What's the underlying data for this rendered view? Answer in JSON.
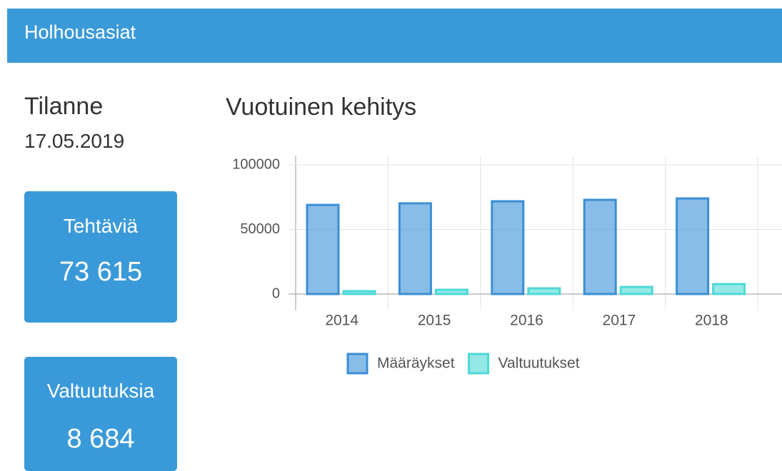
{
  "header": {
    "title": "Holhousasiat"
  },
  "status": {
    "label": "Tilanne",
    "date": "17.05.2019"
  },
  "cards": [
    {
      "label": "Tehtäviä",
      "value": "73 615"
    },
    {
      "label": "Valtuutuksia",
      "value": "8 684"
    }
  ],
  "chart_data": {
    "type": "bar",
    "title": "Vuotuinen kehitys",
    "categories": [
      "2014",
      "2015",
      "2016",
      "2017",
      "2018"
    ],
    "series": [
      {
        "name": "Määräykset",
        "color": "#3a8fd6",
        "values": [
          69000,
          70200,
          71800,
          72900,
          74000
        ]
      },
      {
        "name": "Valtuutukset",
        "color": "#4dd9d5",
        "values": [
          2200,
          3300,
          4400,
          5500,
          7700
        ]
      }
    ],
    "ylim": [
      0,
      100000
    ],
    "yticks": [
      0,
      50000,
      100000
    ],
    "grid": true,
    "legend": "bottom"
  }
}
